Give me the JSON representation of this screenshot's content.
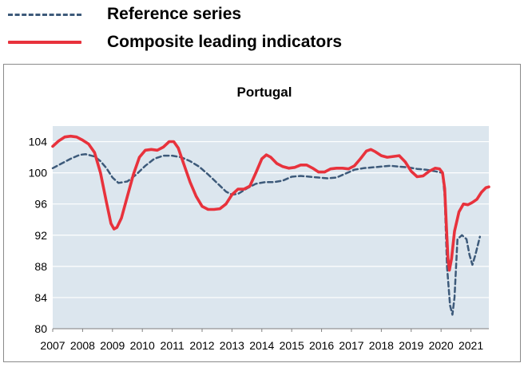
{
  "legend": {
    "reference_label": "Reference series",
    "cli_label": "Composite leading indicators"
  },
  "colors": {
    "reference": "#3d5a7a",
    "cli": "#e8323c",
    "plot_background": "#dce6ee",
    "gridline": "#ffffff"
  },
  "chart_data": {
    "type": "line",
    "title": "Portugal",
    "xlabel": "",
    "ylabel": "",
    "xlim": [
      2007.0,
      2021.6
    ],
    "ylim": [
      80,
      106
    ],
    "yticks": [
      80,
      84,
      88,
      92,
      96,
      100,
      104
    ],
    "xticks": [
      2007,
      2008,
      2009,
      2010,
      2011,
      2012,
      2013,
      2014,
      2015,
      2016,
      2017,
      2018,
      2019,
      2020,
      2021
    ],
    "grid": true,
    "legend_position": "top-left",
    "series": [
      {
        "name": "Reference series",
        "style": "dashed",
        "points": [
          [
            2007.0,
            100.6
          ],
          [
            2007.3,
            101.2
          ],
          [
            2007.6,
            101.8
          ],
          [
            2007.9,
            102.3
          ],
          [
            2008.1,
            102.4
          ],
          [
            2008.4,
            102.1
          ],
          [
            2008.6,
            101.5
          ],
          [
            2008.8,
            100.6
          ],
          [
            2009.0,
            99.4
          ],
          [
            2009.2,
            98.7
          ],
          [
            2009.5,
            98.9
          ],
          [
            2009.8,
            99.8
          ],
          [
            2010.1,
            100.9
          ],
          [
            2010.4,
            101.8
          ],
          [
            2010.7,
            102.2
          ],
          [
            2011.0,
            102.2
          ],
          [
            2011.3,
            102.0
          ],
          [
            2011.6,
            101.5
          ],
          [
            2011.9,
            100.8
          ],
          [
            2012.2,
            99.8
          ],
          [
            2012.5,
            98.7
          ],
          [
            2012.8,
            97.6
          ],
          [
            2013.0,
            97.2
          ],
          [
            2013.2,
            97.3
          ],
          [
            2013.5,
            98.0
          ],
          [
            2013.8,
            98.6
          ],
          [
            2014.1,
            98.8
          ],
          [
            2014.4,
            98.8
          ],
          [
            2014.7,
            99.0
          ],
          [
            2015.0,
            99.5
          ],
          [
            2015.3,
            99.6
          ],
          [
            2015.6,
            99.5
          ],
          [
            2015.9,
            99.4
          ],
          [
            2016.2,
            99.3
          ],
          [
            2016.5,
            99.4
          ],
          [
            2016.8,
            99.9
          ],
          [
            2017.1,
            100.4
          ],
          [
            2017.4,
            100.6
          ],
          [
            2017.7,
            100.7
          ],
          [
            2018.0,
            100.8
          ],
          [
            2018.3,
            100.9
          ],
          [
            2018.6,
            100.8
          ],
          [
            2018.9,
            100.7
          ],
          [
            2019.2,
            100.5
          ],
          [
            2019.5,
            100.4
          ],
          [
            2019.8,
            100.2
          ],
          [
            2020.05,
            100.0
          ],
          [
            2020.12,
            97.0
          ],
          [
            2020.2,
            88.0
          ],
          [
            2020.3,
            83.0
          ],
          [
            2020.38,
            81.8
          ],
          [
            2020.45,
            84.0
          ],
          [
            2020.55,
            91.5
          ],
          [
            2020.7,
            92.0
          ],
          [
            2020.85,
            91.5
          ],
          [
            2020.95,
            89.5
          ],
          [
            2021.05,
            88.2
          ],
          [
            2021.15,
            89.5
          ],
          [
            2021.3,
            91.8
          ]
        ]
      },
      {
        "name": "Composite leading indicators",
        "style": "solid",
        "points": [
          [
            2007.0,
            103.4
          ],
          [
            2007.2,
            104.1
          ],
          [
            2007.4,
            104.6
          ],
          [
            2007.6,
            104.7
          ],
          [
            2007.8,
            104.6
          ],
          [
            2008.0,
            104.2
          ],
          [
            2008.2,
            103.7
          ],
          [
            2008.4,
            102.6
          ],
          [
            2008.6,
            100.0
          ],
          [
            2008.8,
            96.2
          ],
          [
            2008.95,
            93.5
          ],
          [
            2009.05,
            92.8
          ],
          [
            2009.15,
            93.0
          ],
          [
            2009.3,
            94.2
          ],
          [
            2009.5,
            97.0
          ],
          [
            2009.7,
            99.8
          ],
          [
            2009.9,
            102.0
          ],
          [
            2010.1,
            102.9
          ],
          [
            2010.3,
            103.0
          ],
          [
            2010.5,
            102.9
          ],
          [
            2010.7,
            103.3
          ],
          [
            2010.9,
            104.0
          ],
          [
            2011.05,
            104.0
          ],
          [
            2011.2,
            103.2
          ],
          [
            2011.4,
            101.0
          ],
          [
            2011.6,
            98.8
          ],
          [
            2011.8,
            97.0
          ],
          [
            2012.0,
            95.7
          ],
          [
            2012.2,
            95.3
          ],
          [
            2012.4,
            95.3
          ],
          [
            2012.6,
            95.4
          ],
          [
            2012.8,
            96.0
          ],
          [
            2013.0,
            97.2
          ],
          [
            2013.2,
            97.9
          ],
          [
            2013.4,
            97.9
          ],
          [
            2013.6,
            98.3
          ],
          [
            2013.8,
            100.0
          ],
          [
            2014.0,
            101.8
          ],
          [
            2014.15,
            102.3
          ],
          [
            2014.3,
            102.0
          ],
          [
            2014.5,
            101.2
          ],
          [
            2014.7,
            100.8
          ],
          [
            2014.9,
            100.6
          ],
          [
            2015.1,
            100.7
          ],
          [
            2015.3,
            101.0
          ],
          [
            2015.5,
            101.0
          ],
          [
            2015.7,
            100.6
          ],
          [
            2015.9,
            100.1
          ],
          [
            2016.1,
            100.1
          ],
          [
            2016.3,
            100.5
          ],
          [
            2016.5,
            100.6
          ],
          [
            2016.7,
            100.6
          ],
          [
            2016.9,
            100.5
          ],
          [
            2017.1,
            100.9
          ],
          [
            2017.3,
            101.8
          ],
          [
            2017.5,
            102.8
          ],
          [
            2017.65,
            103.0
          ],
          [
            2017.8,
            102.7
          ],
          [
            2018.0,
            102.2
          ],
          [
            2018.2,
            102.0
          ],
          [
            2018.4,
            102.1
          ],
          [
            2018.6,
            102.2
          ],
          [
            2018.8,
            101.4
          ],
          [
            2019.0,
            100.2
          ],
          [
            2019.2,
            99.5
          ],
          [
            2019.4,
            99.6
          ],
          [
            2019.6,
            100.2
          ],
          [
            2019.8,
            100.6
          ],
          [
            2019.95,
            100.5
          ],
          [
            2020.05,
            100.0
          ],
          [
            2020.12,
            98.0
          ],
          [
            2020.18,
            93.0
          ],
          [
            2020.23,
            89.0
          ],
          [
            2020.28,
            87.5
          ],
          [
            2020.35,
            89.0
          ],
          [
            2020.45,
            92.5
          ],
          [
            2020.6,
            95.0
          ],
          [
            2020.75,
            96.0
          ],
          [
            2020.9,
            95.9
          ],
          [
            2021.05,
            96.2
          ],
          [
            2021.2,
            96.6
          ],
          [
            2021.35,
            97.5
          ],
          [
            2021.5,
            98.1
          ],
          [
            2021.6,
            98.2
          ]
        ]
      }
    ]
  }
}
